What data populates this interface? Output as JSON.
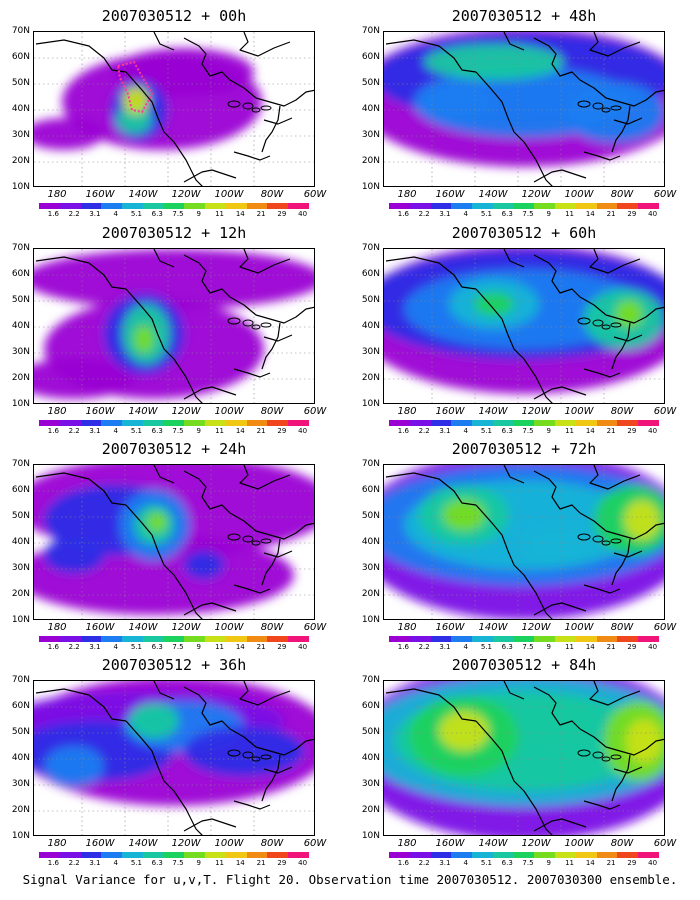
{
  "figure": {
    "caption": "Signal Variance for u,v,T. Flight 20. Observation time 2007030512. 2007030300 ensemble."
  },
  "axes": {
    "lat_labels": [
      "10N",
      "20N",
      "30N",
      "40N",
      "50N",
      "60N",
      "70N"
    ],
    "lon_labels": [
      "180",
      "160W",
      "140W",
      "120W",
      "100W",
      "80W",
      "60W"
    ]
  },
  "colorbar": {
    "labels": [
      "1.6",
      "2.2",
      "3.1",
      "4",
      "5.1",
      "6.3",
      "7.5",
      "9",
      "11",
      "14",
      "21",
      "29",
      "40"
    ],
    "colors": [
      "#9a00d4",
      "#7a10e6",
      "#2e2ee6",
      "#1d7cf0",
      "#18b4d6",
      "#19c8a0",
      "#1bd25e",
      "#76dc20",
      "#c8e016",
      "#f0c814",
      "#f08c14",
      "#f0461e",
      "#f0147a"
    ]
  },
  "panels": [
    {
      "id": "p00",
      "title": "2007030512 + 00h",
      "lead_h": 0
    },
    {
      "id": "p48",
      "title": "2007030512 + 48h",
      "lead_h": 48
    },
    {
      "id": "p12",
      "title": "2007030512 + 12h",
      "lead_h": 12
    },
    {
      "id": "p60",
      "title": "2007030512 + 60h",
      "lead_h": 60
    },
    {
      "id": "p24",
      "title": "2007030512 + 24h",
      "lead_h": 24
    },
    {
      "id": "p72",
      "title": "2007030512 + 72h",
      "lead_h": 72
    },
    {
      "id": "p36",
      "title": "2007030512 + 36h",
      "lead_h": 36
    },
    {
      "id": "p84",
      "title": "2007030512 + 84h",
      "lead_h": 84
    }
  ]
}
